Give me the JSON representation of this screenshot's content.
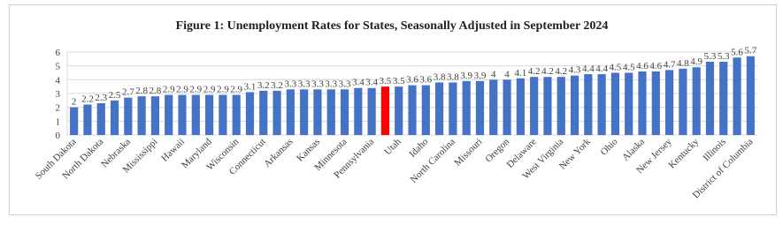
{
  "chart_data": {
    "type": "bar",
    "title": "Figure 1: Unemployment Rates for States, Seasonally Adjusted in September 2024",
    "categories": [
      "South Dakota",
      null,
      "North Dakota",
      null,
      "Nebraska",
      null,
      "Mississippi",
      null,
      "Hawaii",
      null,
      "Maryland",
      null,
      "Wisconsin",
      null,
      "Connecticut",
      null,
      "Arkansas",
      null,
      "Kansas",
      null,
      "Minnesota",
      null,
      "Pennsylvania",
      null,
      "Utah",
      null,
      "Idaho",
      null,
      "North Carolina",
      null,
      "Missouri",
      null,
      "Oregon",
      null,
      "Delaware",
      null,
      "West Virginia",
      null,
      "New York",
      null,
      "Ohio",
      null,
      "Alaska",
      null,
      "New Jersey",
      null,
      "Kentucky",
      null,
      "Illinois",
      null,
      "District of Columbia"
    ],
    "values": [
      2,
      2.2,
      2.3,
      2.5,
      2.7,
      2.8,
      2.8,
      2.9,
      2.9,
      2.9,
      2.9,
      2.9,
      2.9,
      3.1,
      3.2,
      3.2,
      3.3,
      3.3,
      3.3,
      3.3,
      3.3,
      3.4,
      3.4,
      3.5,
      3.5,
      3.6,
      3.6,
      3.8,
      3.8,
      3.9,
      3.9,
      4,
      4,
      4.1,
      4.2,
      4.2,
      4.2,
      4.3,
      4.4,
      4.4,
      4.5,
      4.5,
      4.6,
      4.6,
      4.7,
      4.8,
      4.9,
      5.3,
      5.3,
      5.6,
      5.7
    ],
    "colors": [
      "#4472c4",
      "#4472c4",
      "#4472c4",
      "#4472c4",
      "#4472c4",
      "#4472c4",
      "#4472c4",
      "#4472c4",
      "#4472c4",
      "#4472c4",
      "#4472c4",
      "#4472c4",
      "#4472c4",
      "#4472c4",
      "#4472c4",
      "#4472c4",
      "#4472c4",
      "#4472c4",
      "#4472c4",
      "#4472c4",
      "#4472c4",
      "#4472c4",
      "#4472c4",
      "#ff0000",
      "#4472c4",
      "#4472c4",
      "#4472c4",
      "#4472c4",
      "#4472c4",
      "#4472c4",
      "#4472c4",
      "#4472c4",
      "#4472c4",
      "#4472c4",
      "#4472c4",
      "#4472c4",
      "#4472c4",
      "#4472c4",
      "#4472c4",
      "#4472c4",
      "#4472c4",
      "#4472c4",
      "#4472c4",
      "#4472c4",
      "#4472c4",
      "#4472c4",
      "#4472c4",
      "#4472c4",
      "#4472c4",
      "#4472c4",
      "#4472c4"
    ],
    "ylim": [
      0,
      6
    ],
    "yticks": [
      0,
      1,
      2,
      3,
      4,
      5,
      6
    ],
    "grid": true
  }
}
